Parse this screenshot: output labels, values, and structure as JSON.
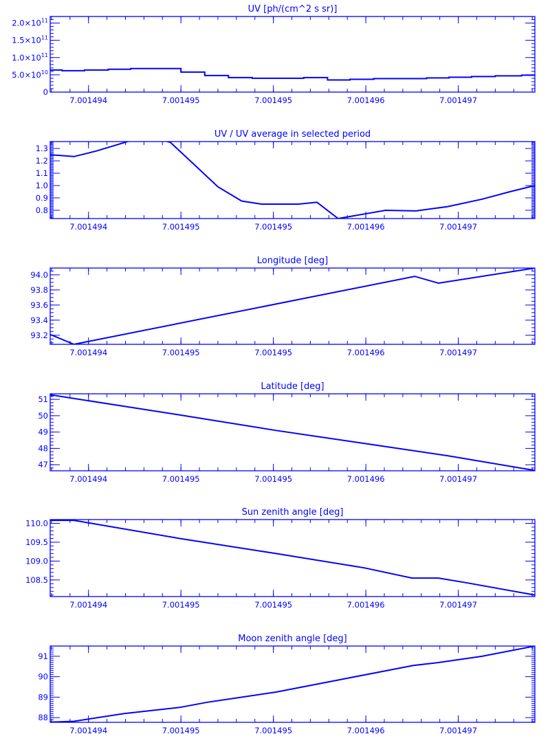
{
  "colors": {
    "axis": "#0000ff",
    "line": "#0000ff",
    "background": "#ffffff"
  },
  "chart_data": [
    {
      "type": "line",
      "title": "UV [ph/(cm^2 s sr)]",
      "line_style": "step",
      "xlim": [
        7.00149361,
        7.00149728
      ],
      "ylim": [
        0,
        219000000000.0
      ],
      "x_ticks": [
        7.0014939,
        7.0014946,
        7.0014953,
        7.001496,
        7.0014967
      ],
      "x_tick_labels": [
        "7.001494",
        "7.001495",
        "7.001495",
        "7.001496",
        "7.001497"
      ],
      "x_minor_step": 1.4e-07,
      "y_ticks": [
        0,
        50000000000.0,
        100000000000.0,
        150000000000.0,
        200000000000.0
      ],
      "y_tick_labels": [
        {
          "mantissa": "0",
          "exp": ""
        },
        {
          "mantissa": "5.0×10",
          "exp": "10"
        },
        {
          "mantissa": "1.0×10",
          "exp": "11"
        },
        {
          "mantissa": "1.5×10",
          "exp": "11"
        },
        {
          "mantissa": "2.0×10",
          "exp": "11"
        }
      ],
      "y_minor_step": 10000000000.0,
      "x": [
        7.00149361,
        7.0014937,
        7.00149387,
        7.00149405,
        7.00149422,
        7.0014946,
        7.00149478,
        7.00149496,
        7.00149514,
        7.00149553,
        7.00149571,
        7.00149588,
        7.00149606,
        7.00149646,
        7.00149663,
        7.0014968,
        7.00149698,
        7.00149718,
        7.00149728
      ],
      "y": [
        64000000000.0,
        62000000000.0,
        64000000000.0,
        66000000000.0,
        68000000000.0,
        58000000000.0,
        48000000000.0,
        42000000000.0,
        40000000000.0,
        42000000000.0,
        35000000000.0,
        37000000000.0,
        39000000000.0,
        41000000000.0,
        43000000000.0,
        45000000000.0,
        47000000000.0,
        49000000000.0,
        49000000000.0
      ]
    },
    {
      "type": "line",
      "title": "UV / UV average in selected period",
      "xlim": [
        7.00149361,
        7.00149728
      ],
      "ylim": [
        0.733,
        1.356
      ],
      "x_ticks": [
        7.0014939,
        7.0014946,
        7.0014953,
        7.001496,
        7.0014967
      ],
      "x_tick_labels": [
        "7.001494",
        "7.001495",
        "7.001495",
        "7.001496",
        "7.001497"
      ],
      "x_minor_step": 1.4e-07,
      "y_ticks": [
        0.8,
        0.9,
        1.0,
        1.1,
        1.2,
        1.3
      ],
      "y_tick_labels": [
        {
          "mantissa": "0.8"
        },
        {
          "mantissa": "0.9"
        },
        {
          "mantissa": "1.0"
        },
        {
          "mantissa": "1.1"
        },
        {
          "mantissa": "1.2"
        },
        {
          "mantissa": "1.3"
        }
      ],
      "y_minor_step": 0.01,
      "x": [
        7.00149361,
        7.00149379,
        7.00149396,
        7.00149427,
        7.00149442,
        7.00149452,
        7.0014947,
        7.00149488,
        7.00149506,
        7.00149521,
        7.00149549,
        7.00149563,
        7.00149579,
        7.00149599,
        7.00149615,
        7.00149638,
        7.00149662,
        7.00149688,
        7.00149709,
        7.00149728
      ],
      "y": [
        1.25,
        1.235,
        1.28,
        1.38,
        1.38,
        1.35,
        1.17,
        0.99,
        0.875,
        0.85,
        0.85,
        0.865,
        0.733,
        0.77,
        0.8,
        0.795,
        0.83,
        0.89,
        0.95,
        1.0
      ]
    },
    {
      "type": "line",
      "title": "Longitude [deg]",
      "xlim": [
        7.00149361,
        7.00149728
      ],
      "ylim": [
        93.08,
        94.09
      ],
      "x_ticks": [
        7.0014939,
        7.0014946,
        7.0014953,
        7.001496,
        7.0014967
      ],
      "x_tick_labels": [
        "7.001494",
        "7.001495",
        "7.001495",
        "7.001496",
        "7.001497"
      ],
      "x_minor_step": 1.4e-07,
      "y_ticks": [
        93.2,
        93.4,
        93.6,
        93.8,
        94.0
      ],
      "y_tick_labels": [
        {
          "mantissa": "93.2"
        },
        {
          "mantissa": "93.4"
        },
        {
          "mantissa": "93.6"
        },
        {
          "mantissa": "93.8"
        },
        {
          "mantissa": "94.0"
        }
      ],
      "y_minor_step": 0.05,
      "x": [
        7.00149361,
        7.00149379,
        7.00149637,
        7.00149655,
        7.00149728
      ],
      "y": [
        93.21,
        93.08,
        93.98,
        93.89,
        94.09
      ]
    },
    {
      "type": "line",
      "title": "Latitude [deg]",
      "xlim": [
        7.00149361,
        7.00149728
      ],
      "ylim": [
        46.63,
        51.34
      ],
      "x_ticks": [
        7.0014939,
        7.0014946,
        7.0014953,
        7.001496,
        7.0014967
      ],
      "x_tick_labels": [
        "7.001494",
        "7.001495",
        "7.001495",
        "7.001496",
        "7.001497"
      ],
      "x_minor_step": 1.4e-07,
      "y_ticks": [
        47,
        48,
        49,
        50,
        51
      ],
      "y_tick_labels": [
        {
          "mantissa": "47"
        },
        {
          "mantissa": "48"
        },
        {
          "mantissa": "49"
        },
        {
          "mantissa": "50"
        },
        {
          "mantissa": "51"
        }
      ],
      "y_minor_step": 0.2,
      "x": [
        7.00149361,
        7.00149459,
        7.00149532,
        7.00149599,
        7.00149662,
        7.00149728
      ],
      "y": [
        51.28,
        50.05,
        49.1,
        48.3,
        47.55,
        46.65
      ]
    },
    {
      "type": "line",
      "title": "Sun zenith angle [deg]",
      "xlim": [
        7.00149361,
        7.00149728
      ],
      "ylim": [
        108.06,
        110.1
      ],
      "x_ticks": [
        7.0014939,
        7.0014946,
        7.0014953,
        7.001496,
        7.0014967
      ],
      "x_tick_labels": [
        "7.001494",
        "7.001495",
        "7.001495",
        "7.001496",
        "7.001497"
      ],
      "x_minor_step": 1.4e-07,
      "y_ticks": [
        108.5,
        109.0,
        109.5,
        110.0
      ],
      "y_tick_labels": [
        {
          "mantissa": "108.5"
        },
        {
          "mantissa": "109.0"
        },
        {
          "mantissa": "109.5"
        },
        {
          "mantissa": "110.0"
        }
      ],
      "y_minor_step": 0.1,
      "x": [
        7.00149361,
        7.00149379,
        7.00149459,
        7.00149532,
        7.00149599,
        7.00149635,
        7.00149655,
        7.00149677,
        7.00149728
      ],
      "y": [
        110.08,
        110.08,
        109.6,
        109.2,
        108.82,
        108.55,
        108.55,
        108.42,
        108.1
      ]
    },
    {
      "type": "line",
      "title": "Moon zenith angle [deg]",
      "xlim": [
        7.00149361,
        7.00149728
      ],
      "ylim": [
        87.77,
        91.5
      ],
      "x_ticks": [
        7.0014939,
        7.0014946,
        7.0014953,
        7.001496,
        7.0014967
      ],
      "x_tick_labels": [
        "7.001494",
        "7.001495",
        "7.001495",
        "7.001496",
        "7.001497"
      ],
      "x_minor_step": 1.4e-07,
      "y_ticks": [
        88,
        89,
        90,
        91
      ],
      "y_tick_labels": [
        {
          "mantissa": "88"
        },
        {
          "mantissa": "89"
        },
        {
          "mantissa": "90"
        },
        {
          "mantissa": "91"
        }
      ],
      "y_minor_step": 0.1,
      "x": [
        7.00149361,
        7.00149379,
        7.00149417,
        7.00149459,
        7.0014948,
        7.00149532,
        7.00149584,
        7.00149636,
        7.00149656,
        7.00149688,
        7.00149728
      ],
      "y": [
        87.78,
        87.82,
        88.2,
        88.5,
        88.75,
        89.25,
        89.9,
        90.55,
        90.7,
        91.0,
        91.5
      ]
    }
  ]
}
